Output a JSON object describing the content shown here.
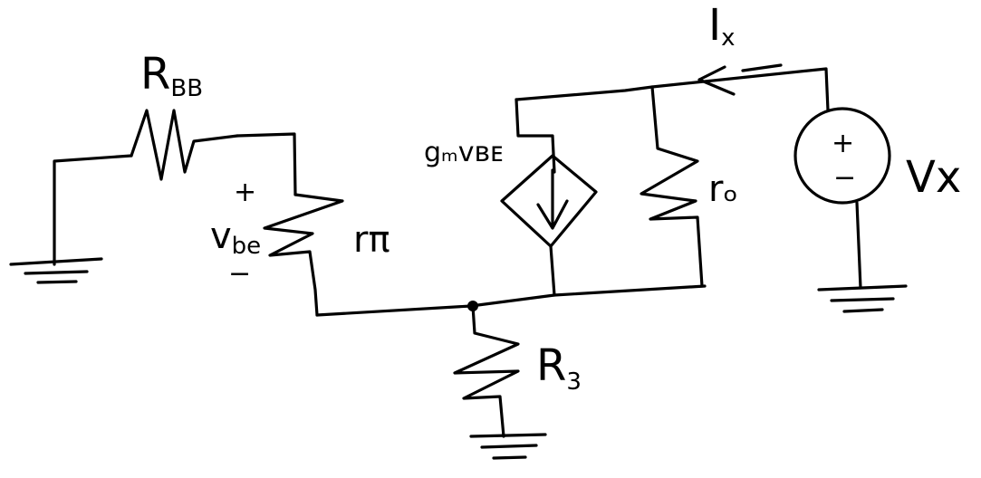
{
  "labels": {
    "r_bb": {
      "main": "R",
      "sub": "BB"
    },
    "r_pi": "rπ",
    "v_be": {
      "main": "v",
      "sub": "be"
    },
    "v_be_plus": "+",
    "v_be_minus": "−",
    "gm_vbe": "gₘvʙᴇ",
    "r_o": "rₒ",
    "r_3": {
      "main": "R",
      "sub": "3"
    },
    "i_x": {
      "main": "I",
      "sub": "x"
    },
    "v_x": "Vx",
    "source_plus": "+",
    "source_minus": "−"
  }
}
